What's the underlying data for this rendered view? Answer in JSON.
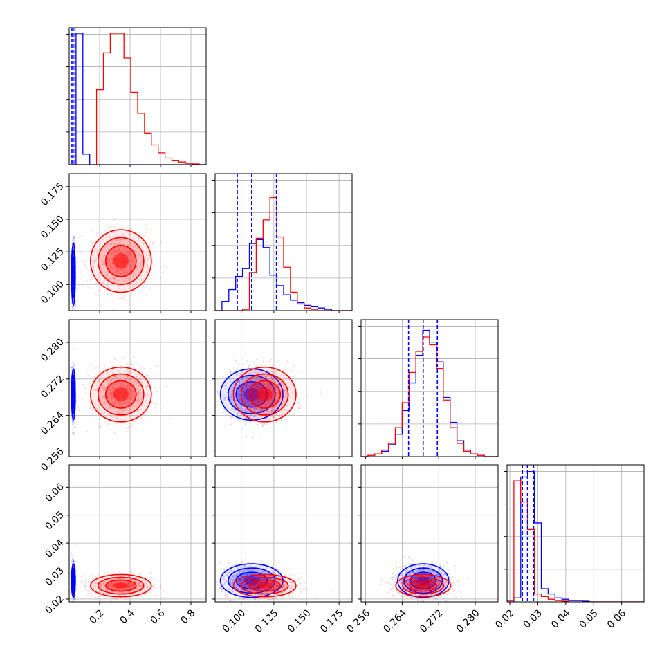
{
  "chart_data": {
    "type": "corner",
    "title": "",
    "grid": true,
    "colors": {
      "series_a": "#0000ff",
      "series_b": "#ff0000"
    },
    "parameters": [
      {
        "ticks": [
          0.2,
          0.4,
          0.6,
          0.8
        ],
        "tick_labels": [
          "0.2",
          "0.4",
          "0.6",
          "0.8"
        ],
        "range": [
          0.0,
          0.9
        ],
        "quantiles_a": [
          0.018,
          0.026,
          0.038
        ],
        "hist_a": [
          0.0,
          1.0,
          0.08,
          0.0,
          0.0,
          0.0,
          0.0,
          0.0,
          0.0,
          0.0,
          0.0,
          0.0,
          0.0,
          0.0,
          0.0,
          0.0,
          0.0,
          0.0,
          0.0,
          0.0
        ],
        "hist_b": [
          0.0,
          0.0,
          0.0,
          0.0,
          0.57,
          0.85,
          1.0,
          1.0,
          0.81,
          0.55,
          0.39,
          0.24,
          0.15,
          0.09,
          0.05,
          0.03,
          0.02,
          0.01,
          0.005,
          0.0
        ]
      },
      {
        "ticks": [
          0.1,
          0.125,
          0.15,
          0.175
        ],
        "tick_labels": [
          "0.100",
          "0.125",
          "0.150",
          "0.175"
        ],
        "range": [
          0.08,
          0.185
        ],
        "quantiles_a": [
          0.097,
          0.108,
          0.127
        ],
        "hist_a": [
          0.0,
          0.07,
          0.16,
          0.26,
          0.32,
          0.51,
          0.54,
          0.48,
          0.27,
          0.19,
          0.12,
          0.08,
          0.06,
          0.04,
          0.03,
          0.02,
          0.01,
          0.0,
          0.0,
          0.0
        ],
        "hist_b": [
          0.0,
          0.0,
          0.0,
          0.0,
          0.01,
          0.29,
          0.55,
          0.69,
          0.86,
          0.56,
          0.33,
          0.14,
          0.05,
          0.02,
          0.01,
          0.0,
          0.0,
          0.0,
          0.0,
          0.0
        ]
      },
      {
        "ticks": [
          0.256,
          0.264,
          0.272,
          0.28
        ],
        "tick_labels": [
          "0.256",
          "0.264",
          "0.272",
          "0.280"
        ],
        "range": [
          0.255,
          0.285
        ],
        "quantiles_a": [
          0.2654,
          0.2686,
          0.2717
        ],
        "hist_a": [
          0.0,
          0.01,
          0.02,
          0.04,
          0.09,
          0.17,
          0.35,
          0.56,
          0.77,
          0.96,
          0.87,
          0.72,
          0.45,
          0.26,
          0.12,
          0.05,
          0.02,
          0.01,
          0.0,
          0.0
        ],
        "hist_b": [
          0.0,
          0.01,
          0.02,
          0.05,
          0.1,
          0.22,
          0.41,
          0.64,
          0.8,
          0.91,
          0.85,
          0.67,
          0.43,
          0.22,
          0.1,
          0.04,
          0.02,
          0.01,
          0.0,
          0.0
        ]
      },
      {
        "ticks": [
          0.02,
          0.03,
          0.04,
          0.05,
          0.06
        ],
        "tick_labels": [
          "0.02",
          "0.03",
          "0.04",
          "0.05",
          "0.06"
        ],
        "range": [
          0.019,
          0.068
        ],
        "quantiles_a": [
          0.0245,
          0.0263,
          0.0285
        ],
        "hist_a": [
          0.0,
          0.03,
          0.95,
          0.99,
          0.6,
          0.1,
          0.06,
          0.03,
          0.02,
          0.01,
          0.01,
          0.005,
          0.0,
          0.0,
          0.0,
          0.0,
          0.0,
          0.0,
          0.0,
          0.0
        ],
        "hist_b": [
          0.01,
          0.92,
          0.76,
          0.55,
          0.06,
          0.04,
          0.02,
          0.01,
          0.005,
          0.0,
          0.0,
          0.0,
          0.0,
          0.0,
          0.0,
          0.0,
          0.0,
          0.0,
          0.0,
          0.0
        ]
      }
    ],
    "samples": {
      "series_a": {
        "mean": [
          0.028,
          0.108,
          0.2686,
          0.0266
        ],
        "sd": [
          0.006,
          0.012,
          0.0028,
          0.003
        ]
      },
      "series_b": {
        "mean": [
          0.34,
          0.118,
          0.2686,
          0.0248
        ],
        "sd": [
          0.1,
          0.012,
          0.003,
          0.002
        ]
      }
    }
  }
}
